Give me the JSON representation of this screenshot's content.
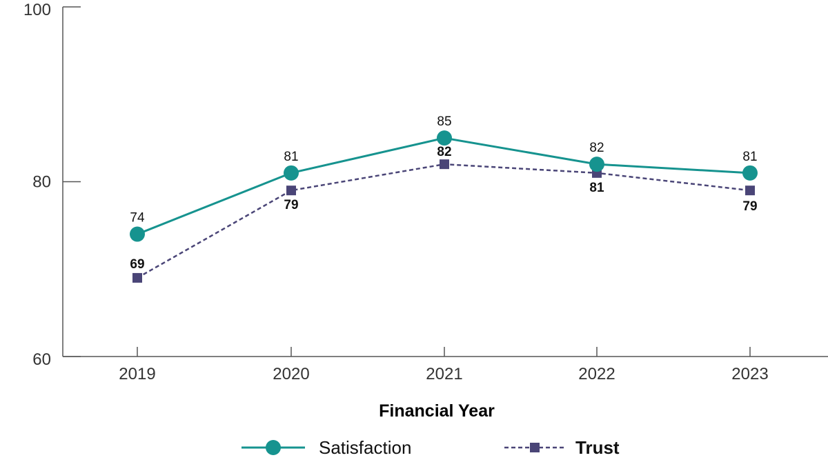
{
  "chart_data": {
    "type": "line",
    "title": "",
    "xlabel": "Financial Year",
    "ylabel": "",
    "categories": [
      "2019",
      "2020",
      "2021",
      "2022",
      "2023"
    ],
    "ylim": [
      60,
      100
    ],
    "yticks": [
      "60",
      "80",
      "100"
    ],
    "grid": false,
    "legend_position": "bottom",
    "series": [
      {
        "name": "Satisfaction",
        "values": [
          74,
          81,
          85,
          82,
          81
        ],
        "color": "#16938f",
        "line_style": "solid",
        "marker": "circle",
        "labels": [
          "74",
          "81",
          "85",
          "82",
          "81"
        ]
      },
      {
        "name": "Trust",
        "values": [
          69,
          79,
          82,
          81,
          79
        ],
        "color": "#4a4577",
        "line_style": "dashed",
        "marker": "square",
        "labels": [
          "69",
          "79",
          "82",
          "81",
          "79"
        ]
      }
    ]
  }
}
